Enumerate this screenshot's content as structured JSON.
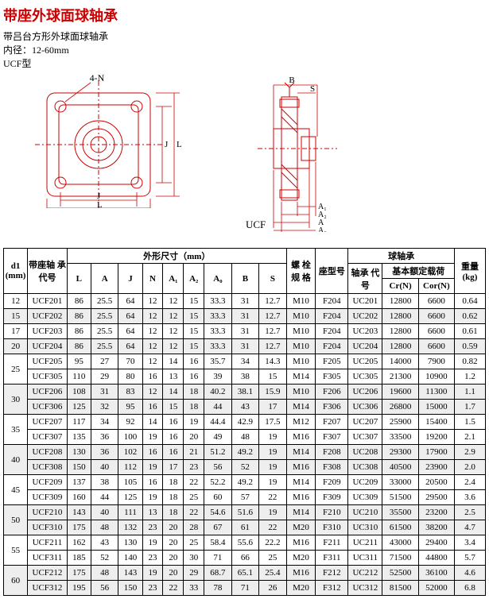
{
  "header": {
    "title": "带座外球面球轴承",
    "line1": "带吕台方形外球面球轴承",
    "line2": "内径：12-60mm",
    "line3": "UCF型",
    "label_4N": "4-N",
    "label_J": "J",
    "label_L": "L",
    "label_J2": "J",
    "label_L2": "L",
    "label_UCF": "UCF",
    "label_B": "B",
    "label_S": "S",
    "label_A1": "A₁",
    "label_A2": "A₂",
    "label_A0": "A₀",
    "label_A": "A"
  },
  "tbl": {
    "h_d1": "d1\n(mm)",
    "h_code": "带座轴\n承代号",
    "h_dims": "外形尺寸（mm）",
    "h_L": "L",
    "h_A": "A",
    "h_J": "J",
    "h_N": "N",
    "h_A1": "A₁",
    "h_A2": "A₂",
    "h_A0": "A₀",
    "h_B": "B",
    "h_S": "S",
    "h_bolt": "螺 栓\n规 格",
    "h_seat": "座型号",
    "h_ball": "球轴承",
    "h_bcode": "轴承\n代号",
    "h_load": "基本额定载荷",
    "h_Cr": "Cr(N)",
    "h_Cor": "Cor(N)",
    "h_wt": "重量\n(kg)",
    "rows": [
      {
        "d1": "12",
        "d1rs": 1,
        "stripe": 0,
        "c": "UCF201",
        "L": "86",
        "A": "25.5",
        "J": "64",
        "N": "12",
        "A1": "12",
        "A2": "15",
        "A0": "33.3",
        "B": "31",
        "S": "12.7",
        "bolt": "M10",
        "seat": "F204",
        "bc": "UC201",
        "Cr": "12800",
        "Cor": "6600",
        "wt": "0.64"
      },
      {
        "d1": "15",
        "d1rs": 1,
        "stripe": 1,
        "c": "UCF202",
        "L": "86",
        "A": "25.5",
        "J": "64",
        "N": "12",
        "A1": "12",
        "A2": "15",
        "A0": "33.3",
        "B": "31",
        "S": "12.7",
        "bolt": "M10",
        "seat": "F204",
        "bc": "UC202",
        "Cr": "12800",
        "Cor": "6600",
        "wt": "0.62"
      },
      {
        "d1": "17",
        "d1rs": 1,
        "stripe": 0,
        "c": "UCF203",
        "L": "86",
        "A": "25.5",
        "J": "64",
        "N": "12",
        "A1": "12",
        "A2": "15",
        "A0": "33.3",
        "B": "31",
        "S": "12.7",
        "bolt": "M10",
        "seat": "F204",
        "bc": "UC203",
        "Cr": "12800",
        "Cor": "6600",
        "wt": "0.61"
      },
      {
        "d1": "20",
        "d1rs": 1,
        "stripe": 1,
        "c": "UCF204",
        "L": "86",
        "A": "25.5",
        "J": "64",
        "N": "12",
        "A1": "12",
        "A2": "15",
        "A0": "33.3",
        "B": "31",
        "S": "12.7",
        "bolt": "M10",
        "seat": "F204",
        "bc": "UC204",
        "Cr": "12800",
        "Cor": "6600",
        "wt": "0.59"
      },
      {
        "d1": "25",
        "d1rs": 2,
        "stripe": 0,
        "c": "UCF205",
        "L": "95",
        "A": "27",
        "J": "70",
        "N": "12",
        "A1": "14",
        "A2": "16",
        "A0": "35.7",
        "B": "34",
        "S": "14.3",
        "bolt": "M10",
        "seat": "F205",
        "bc": "UC205",
        "Cr": "14000",
        "Cor": "7900",
        "wt": "0.82"
      },
      {
        "d1": "",
        "d1rs": 0,
        "stripe": 0,
        "c": "UCF305",
        "L": "110",
        "A": "29",
        "J": "80",
        "N": "16",
        "A1": "13",
        "A2": "16",
        "A0": "39",
        "B": "38",
        "S": "15",
        "bolt": "M14",
        "seat": "F305",
        "bc": "UC305",
        "Cr": "21300",
        "Cor": "10900",
        "wt": "1.2"
      },
      {
        "d1": "30",
        "d1rs": 2,
        "stripe": 1,
        "c": "UCF206",
        "L": "108",
        "A": "31",
        "J": "83",
        "N": "12",
        "A1": "14",
        "A2": "18",
        "A0": "40.2",
        "B": "38.1",
        "S": "15.9",
        "bolt": "M10",
        "seat": "F206",
        "bc": "UC206",
        "Cr": "19600",
        "Cor": "11300",
        "wt": "1.1"
      },
      {
        "d1": "",
        "d1rs": 0,
        "stripe": 1,
        "c": "UCF306",
        "L": "125",
        "A": "32",
        "J": "95",
        "N": "16",
        "A1": "15",
        "A2": "18",
        "A0": "44",
        "B": "43",
        "S": "17",
        "bolt": "M14",
        "seat": "F306",
        "bc": "UC306",
        "Cr": "26800",
        "Cor": "15000",
        "wt": "1.7"
      },
      {
        "d1": "35",
        "d1rs": 2,
        "stripe": 0,
        "c": "UCF207",
        "L": "117",
        "A": "34",
        "J": "92",
        "N": "14",
        "A1": "16",
        "A2": "19",
        "A0": "44.4",
        "B": "42.9",
        "S": "17.5",
        "bolt": "M12",
        "seat": "F207",
        "bc": "UC207",
        "Cr": "25900",
        "Cor": "15400",
        "wt": "1.5"
      },
      {
        "d1": "",
        "d1rs": 0,
        "stripe": 0,
        "c": "UCF307",
        "L": "135",
        "A": "36",
        "J": "100",
        "N": "19",
        "A1": "16",
        "A2": "20",
        "A0": "49",
        "B": "48",
        "S": "19",
        "bolt": "M16",
        "seat": "F307",
        "bc": "UC307",
        "Cr": "33500",
        "Cor": "19200",
        "wt": "2.1"
      },
      {
        "d1": "40",
        "d1rs": 2,
        "stripe": 1,
        "c": "UCF208",
        "L": "130",
        "A": "36",
        "J": "102",
        "N": "16",
        "A1": "16",
        "A2": "21",
        "A0": "51.2",
        "B": "49.2",
        "S": "19",
        "bolt": "M14",
        "seat": "F208",
        "bc": "UC208",
        "Cr": "29300",
        "Cor": "17900",
        "wt": "2.9"
      },
      {
        "d1": "",
        "d1rs": 0,
        "stripe": 1,
        "c": "UCF308",
        "L": "150",
        "A": "40",
        "J": "112",
        "N": "19",
        "A1": "17",
        "A2": "23",
        "A0": "56",
        "B": "52",
        "S": "19",
        "bolt": "M16",
        "seat": "F308",
        "bc": "UC308",
        "Cr": "40500",
        "Cor": "23900",
        "wt": "2.0"
      },
      {
        "d1": "45",
        "d1rs": 2,
        "stripe": 0,
        "c": "UCF209",
        "L": "137",
        "A": "38",
        "J": "105",
        "N": "16",
        "A1": "18",
        "A2": "22",
        "A0": "52.2",
        "B": "49.2",
        "S": "19",
        "bolt": "M14",
        "seat": "F209",
        "bc": "UC209",
        "Cr": "33000",
        "Cor": "20500",
        "wt": "2.4"
      },
      {
        "d1": "",
        "d1rs": 0,
        "stripe": 0,
        "c": "UCF309",
        "L": "160",
        "A": "44",
        "J": "125",
        "N": "19",
        "A1": "18",
        "A2": "25",
        "A0": "60",
        "B": "57",
        "S": "22",
        "bolt": "M16",
        "seat": "F309",
        "bc": "UC309",
        "Cr": "51500",
        "Cor": "29500",
        "wt": "3.6"
      },
      {
        "d1": "50",
        "d1rs": 2,
        "stripe": 1,
        "c": "UCF210",
        "L": "143",
        "A": "40",
        "J": "111",
        "N": "13",
        "A1": "18",
        "A2": "22",
        "A0": "54.6",
        "B": "51.6",
        "S": "19",
        "bolt": "M14",
        "seat": "F210",
        "bc": "UC210",
        "Cr": "35500",
        "Cor": "23200",
        "wt": "2.5"
      },
      {
        "d1": "",
        "d1rs": 0,
        "stripe": 1,
        "c": "UCF310",
        "L": "175",
        "A": "48",
        "J": "132",
        "N": "23",
        "A1": "20",
        "A2": "28",
        "A0": "67",
        "B": "61",
        "S": "22",
        "bolt": "M20",
        "seat": "F310",
        "bc": "UC310",
        "Cr": "61500",
        "Cor": "38200",
        "wt": "4.7"
      },
      {
        "d1": "55",
        "d1rs": 2,
        "stripe": 0,
        "c": "UCF211",
        "L": "162",
        "A": "43",
        "J": "130",
        "N": "19",
        "A1": "20",
        "A2": "25",
        "A0": "58.4",
        "B": "55.6",
        "S": "22.2",
        "bolt": "M16",
        "seat": "F211",
        "bc": "UC211",
        "Cr": "43000",
        "Cor": "29400",
        "wt": "3.4"
      },
      {
        "d1": "",
        "d1rs": 0,
        "stripe": 0,
        "c": "UCF311",
        "L": "185",
        "A": "52",
        "J": "140",
        "N": "23",
        "A1": "20",
        "A2": "30",
        "A0": "71",
        "B": "66",
        "S": "25",
        "bolt": "M20",
        "seat": "F311",
        "bc": "UC311",
        "Cr": "71500",
        "Cor": "44800",
        "wt": "5.7"
      },
      {
        "d1": "60",
        "d1rs": 2,
        "stripe": 1,
        "c": "UCF212",
        "L": "175",
        "A": "48",
        "J": "143",
        "N": "19",
        "A1": "20",
        "A2": "29",
        "A0": "68.7",
        "B": "65.1",
        "S": "25.4",
        "bolt": "M16",
        "seat": "F212",
        "bc": "UC212",
        "Cr": "52500",
        "Cor": "36100",
        "wt": "4.6"
      },
      {
        "d1": "",
        "d1rs": 0,
        "stripe": 1,
        "c": "UCF312",
        "L": "195",
        "A": "56",
        "J": "150",
        "N": "23",
        "A1": "22",
        "A2": "33",
        "A0": "78",
        "B": "71",
        "S": "26",
        "bolt": "M20",
        "seat": "F312",
        "bc": "UC312",
        "Cr": "81500",
        "Cor": "52000",
        "wt": "6.8"
      }
    ]
  }
}
